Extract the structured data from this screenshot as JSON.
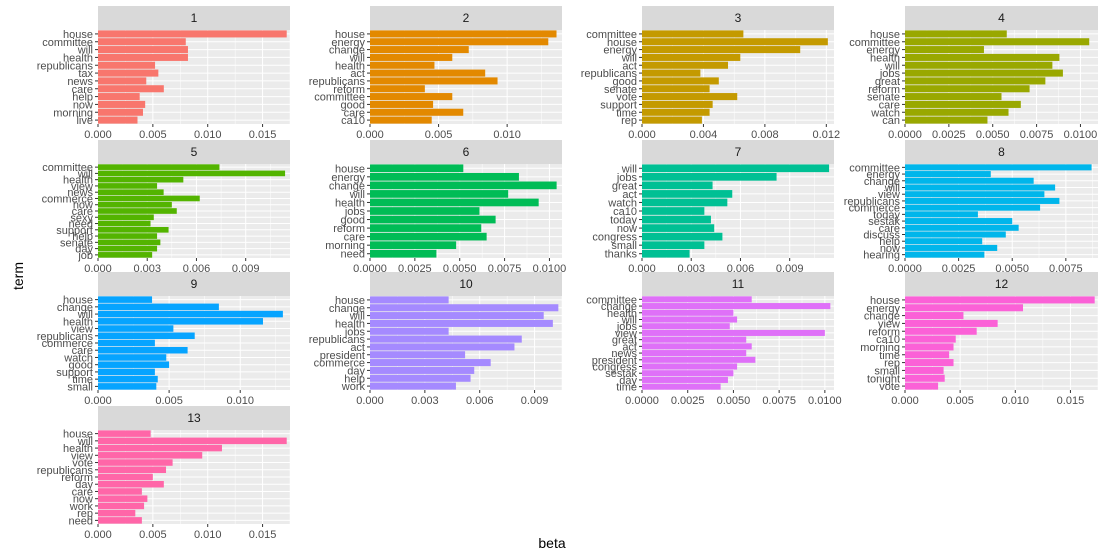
{
  "chart_data": {
    "type": "bar",
    "orientation": "horizontal",
    "facet_layout": "4 columns x 4 rows (13 panels)",
    "xlabel": "beta",
    "ylabel": "term",
    "background": "#EBEBEB",
    "strip_color": "#D9D9D9",
    "grid": true,
    "legend": "none",
    "panels": [
      {
        "facet": "1",
        "color": "#F8766D",
        "xlim": [
          0,
          0.0175
        ],
        "xticks": [
          0,
          0.005,
          0.01,
          0.015
        ],
        "xtick_labels": [
          "0.000",
          "0.005",
          "0.010",
          "0.015"
        ],
        "terms": [
          "house",
          "committee",
          "will",
          "health",
          "republicans",
          "tax",
          "news",
          "care",
          "help",
          "now",
          "morning",
          "live"
        ],
        "values": [
          0.0172,
          0.008,
          0.0082,
          0.0082,
          0.0052,
          0.0055,
          0.0044,
          0.006,
          0.0038,
          0.0043,
          0.0041,
          0.0036
        ]
      },
      {
        "facet": "2",
        "color": "#E38900",
        "xlim": [
          0,
          0.014
        ],
        "xticks": [
          0,
          0.005,
          0.01
        ],
        "xtick_labels": [
          "0.000",
          "0.005",
          "0.010"
        ],
        "terms": [
          "house",
          "energy",
          "change",
          "will",
          "health",
          "act",
          "republicans",
          "reform",
          "committee",
          "good",
          "care",
          "ca10"
        ],
        "values": [
          0.0136,
          0.013,
          0.0072,
          0.006,
          0.0047,
          0.0084,
          0.0093,
          0.004,
          0.006,
          0.0046,
          0.0068,
          0.0045
        ]
      },
      {
        "facet": "3",
        "color": "#C49A00",
        "xlim": [
          0,
          0.0125
        ],
        "xticks": [
          0,
          0.004,
          0.008,
          0.012
        ],
        "xtick_labels": [
          "0.000",
          "0.004",
          "0.008",
          "0.012"
        ],
        "terms": [
          "committee",
          "house",
          "energy",
          "will",
          "act",
          "republicans",
          "good",
          "senate",
          "vote",
          "support",
          "time",
          "rep"
        ],
        "values": [
          0.0066,
          0.0121,
          0.0103,
          0.0064,
          0.0056,
          0.0038,
          0.005,
          0.0044,
          0.0062,
          0.0046,
          0.0044,
          0.0039
        ]
      },
      {
        "facet": "4",
        "color": "#99A800",
        "xlim": [
          0,
          0.011
        ],
        "xticks": [
          0,
          0.0025,
          0.005,
          0.0075,
          0.01
        ],
        "xtick_labels": [
          "0.0000",
          "0.0025",
          "0.0050",
          "0.0075",
          "0.0100"
        ],
        "terms": [
          "house",
          "committee",
          "energy",
          "health",
          "will",
          "jobs",
          "great",
          "reform",
          "senate",
          "care",
          "watch",
          "can"
        ],
        "values": [
          0.0058,
          0.0105,
          0.0045,
          0.0088,
          0.0084,
          0.009,
          0.008,
          0.0071,
          0.0055,
          0.0066,
          0.0059,
          0.0047
        ]
      },
      {
        "facet": "5",
        "color": "#53B400",
        "xlim": [
          0,
          0.0117
        ],
        "xticks": [
          0,
          0.003,
          0.006,
          0.009
        ],
        "xtick_labels": [
          "0.000",
          "0.003",
          "0.006",
          "0.009"
        ],
        "terms": [
          "committee",
          "will",
          "health",
          "view",
          "news",
          "commerce",
          "now",
          "care",
          "sexy",
          "need",
          "support",
          "help",
          "senate",
          "day",
          "job"
        ],
        "values": [
          0.0074,
          0.0114,
          0.0052,
          0.0036,
          0.004,
          0.0062,
          0.0045,
          0.0048,
          0.0034,
          0.0032,
          0.0043,
          0.0036,
          0.0038,
          0.0036,
          0.0033
        ]
      },
      {
        "facet": "6",
        "color": "#00BC56",
        "xlim": [
          0,
          0.0107
        ],
        "xticks": [
          0,
          0.0025,
          0.005,
          0.0075,
          0.01
        ],
        "xtick_labels": [
          "0.0000",
          "0.0025",
          "0.0050",
          "0.0075",
          "0.0100"
        ],
        "terms": [
          "house",
          "energy",
          "change",
          "will",
          "health",
          "jobs",
          "good",
          "reform",
          "care",
          "morning",
          "need"
        ],
        "values": [
          0.0052,
          0.0083,
          0.0104,
          0.0077,
          0.0094,
          0.0061,
          0.007,
          0.0062,
          0.0065,
          0.0048,
          0.0037
        ]
      },
      {
        "facet": "7",
        "color": "#00C094",
        "xlim": [
          0,
          0.0117
        ],
        "xticks": [
          0,
          0.003,
          0.006,
          0.009
        ],
        "xtick_labels": [
          "0.000",
          "0.003",
          "0.006",
          "0.009"
        ],
        "terms": [
          "will",
          "jobs",
          "great",
          "act",
          "watch",
          "ca10",
          "today",
          "now",
          "congress",
          "small",
          "thanks"
        ],
        "values": [
          0.0114,
          0.0082,
          0.0043,
          0.0055,
          0.0052,
          0.0038,
          0.0042,
          0.0044,
          0.0049,
          0.0038,
          0.0029
        ]
      },
      {
        "facet": "8",
        "color": "#00B6EB",
        "xlim": [
          0,
          0.009
        ],
        "xticks": [
          0,
          0.0025,
          0.005,
          0.0075
        ],
        "xtick_labels": [
          "0.0000",
          "0.0025",
          "0.0050",
          "0.0075"
        ],
        "terms": [
          "committee",
          "energy",
          "change",
          "will",
          "view",
          "republicans",
          "commerce",
          "today",
          "sestak",
          "care",
          "discuss",
          "help",
          "now",
          "hearing"
        ],
        "values": [
          0.0087,
          0.004,
          0.006,
          0.007,
          0.0065,
          0.0072,
          0.0063,
          0.0034,
          0.005,
          0.0053,
          0.0047,
          0.0036,
          0.0043,
          0.0037
        ]
      },
      {
        "facet": "9",
        "color": "#06A4FF",
        "xlim": [
          0,
          0.0135
        ],
        "xticks": [
          0,
          0.005,
          0.01
        ],
        "xtick_labels": [
          "0.000",
          "0.005",
          "0.010"
        ],
        "terms": [
          "house",
          "change",
          "will",
          "health",
          "view",
          "republicans",
          "commerce",
          "care",
          "watch",
          "good",
          "support",
          "time",
          "small"
        ],
        "values": [
          0.0038,
          0.0085,
          0.013,
          0.0116,
          0.0053,
          0.0068,
          0.004,
          0.0063,
          0.0048,
          0.005,
          0.004,
          0.0042,
          0.0041
        ]
      },
      {
        "facet": "10",
        "color": "#A58AFF",
        "xlim": [
          0,
          0.0105
        ],
        "xticks": [
          0,
          0.003,
          0.006,
          0.009
        ],
        "xtick_labels": [
          "0.000",
          "0.003",
          "0.006",
          "0.009"
        ],
        "terms": [
          "house",
          "change",
          "will",
          "health",
          "jobs",
          "republicans",
          "act",
          "president",
          "commerce",
          "day",
          "help",
          "work"
        ],
        "values": [
          0.0043,
          0.0103,
          0.0095,
          0.01,
          0.0043,
          0.0083,
          0.0079,
          0.0052,
          0.0066,
          0.0057,
          0.0055,
          0.0047
        ]
      },
      {
        "facet": "11",
        "color": "#DF70F8",
        "xlim": [
          0,
          0.0105
        ],
        "xticks": [
          0,
          0.0025,
          0.005,
          0.0075,
          0.01
        ],
        "xtick_labels": [
          "0.0000",
          "0.0025",
          "0.0050",
          "0.0075",
          "0.0100"
        ],
        "terms": [
          "committee",
          "change",
          "health",
          "will",
          "jobs",
          "view",
          "great",
          "act",
          "news",
          "president",
          "congress",
          "sestak",
          "day",
          "time"
        ],
        "values": [
          0.006,
          0.0103,
          0.005,
          0.0052,
          0.0048,
          0.01,
          0.0057,
          0.006,
          0.0057,
          0.0062,
          0.0052,
          0.005,
          0.0047,
          0.0043
        ]
      },
      {
        "facet": "12",
        "color": "#FB61D7",
        "xlim": [
          0,
          0.0175
        ],
        "xticks": [
          0,
          0.005,
          0.01,
          0.015
        ],
        "xtick_labels": [
          "0.000",
          "0.005",
          "0.010",
          "0.015"
        ],
        "terms": [
          "house",
          "energy",
          "change",
          "view",
          "reform",
          "ca10",
          "morning",
          "time",
          "rep",
          "small",
          "tonight",
          "vote"
        ],
        "values": [
          0.0172,
          0.0107,
          0.0053,
          0.0084,
          0.0065,
          0.0046,
          0.0044,
          0.004,
          0.0044,
          0.0035,
          0.0036,
          0.003
        ]
      },
      {
        "facet": "13",
        "color": "#FF66A8",
        "xlim": [
          0,
          0.0175
        ],
        "xticks": [
          0,
          0.005,
          0.01,
          0.015
        ],
        "xtick_labels": [
          "0.000",
          "0.005",
          "0.010",
          "0.015"
        ],
        "terms": [
          "house",
          "will",
          "health",
          "view",
          "vote",
          "republicans",
          "reform",
          "day",
          "care",
          "now",
          "work",
          "rep",
          "need"
        ],
        "values": [
          0.0048,
          0.0172,
          0.0113,
          0.0095,
          0.0068,
          0.0062,
          0.005,
          0.006,
          0.004,
          0.0045,
          0.0042,
          0.0034,
          0.004
        ]
      }
    ]
  }
}
